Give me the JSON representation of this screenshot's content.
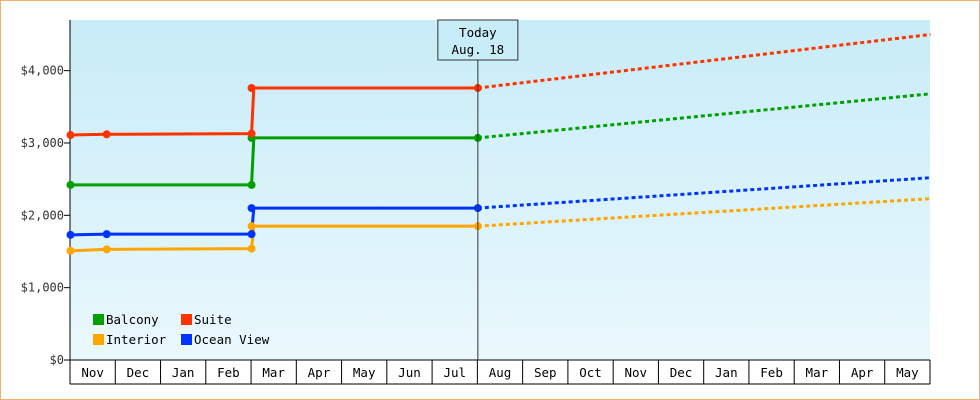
{
  "chart_data": {
    "type": "line",
    "title": "",
    "xlabel": "",
    "ylabel": "",
    "categories": [
      "Nov",
      "Dec",
      "Jan",
      "Feb",
      "Mar",
      "Apr",
      "May",
      "Jun",
      "Jul",
      "Aug",
      "Sep",
      "Oct",
      "Nov",
      "Dec",
      "Jan",
      "Feb",
      "Mar",
      "Apr",
      "May"
    ],
    "ylim": [
      0,
      4700
    ],
    "y_ticks": [
      {
        "value": 0,
        "label": "$0"
      },
      {
        "value": 1000,
        "label": "$1,000"
      },
      {
        "value": 2000,
        "label": "$2,000"
      },
      {
        "value": 3000,
        "label": "$3,000"
      },
      {
        "value": 4000,
        "label": "$4,000"
      }
    ],
    "grid": false,
    "legend_position": "bottom-left",
    "today": {
      "line1": "Today",
      "line2": "Aug. 18",
      "month_index": 9.0
    },
    "series": [
      {
        "name": "Balcony",
        "color": "#00a000",
        "points": [
          [
            0,
            2420
          ],
          [
            4,
            2420
          ],
          [
            4.05,
            3070
          ],
          [
            9,
            3070
          ]
        ],
        "markers": [
          [
            0,
            2420
          ],
          [
            4,
            2420
          ],
          [
            4,
            3070
          ],
          [
            9,
            3070
          ]
        ],
        "forecast": [
          [
            9,
            3070
          ],
          [
            19,
            3680
          ]
        ]
      },
      {
        "name": "Suite",
        "color": "#ff3300",
        "points": [
          [
            0,
            3110
          ],
          [
            0.8,
            3120
          ],
          [
            4,
            3130
          ],
          [
            4.05,
            3760
          ],
          [
            9,
            3760
          ]
        ],
        "markers": [
          [
            0,
            3110
          ],
          [
            0.8,
            3120
          ],
          [
            4,
            3130
          ],
          [
            4,
            3760
          ],
          [
            9,
            3760
          ]
        ],
        "forecast": [
          [
            9,
            3760
          ],
          [
            19,
            4500
          ]
        ]
      },
      {
        "name": "Interior",
        "color": "#ffa500",
        "points": [
          [
            0,
            1510
          ],
          [
            0.8,
            1530
          ],
          [
            4,
            1540
          ],
          [
            4.05,
            1850
          ],
          [
            9,
            1850
          ]
        ],
        "markers": [
          [
            0,
            1510
          ],
          [
            0.8,
            1530
          ],
          [
            4,
            1540
          ],
          [
            4,
            1850
          ],
          [
            9,
            1850
          ]
        ],
        "forecast": [
          [
            9,
            1850
          ],
          [
            19,
            2230
          ]
        ]
      },
      {
        "name": "Ocean View",
        "color": "#0033ff",
        "points": [
          [
            0,
            1730
          ],
          [
            0.8,
            1740
          ],
          [
            4,
            1740
          ],
          [
            4.05,
            2100
          ],
          [
            9,
            2100
          ]
        ],
        "markers": [
          [
            0,
            1730
          ],
          [
            0.8,
            1740
          ],
          [
            4,
            1740
          ],
          [
            4,
            2100
          ],
          [
            9,
            2100
          ]
        ],
        "forecast": [
          [
            9,
            2100
          ],
          [
            19,
            2520
          ]
        ]
      }
    ]
  }
}
